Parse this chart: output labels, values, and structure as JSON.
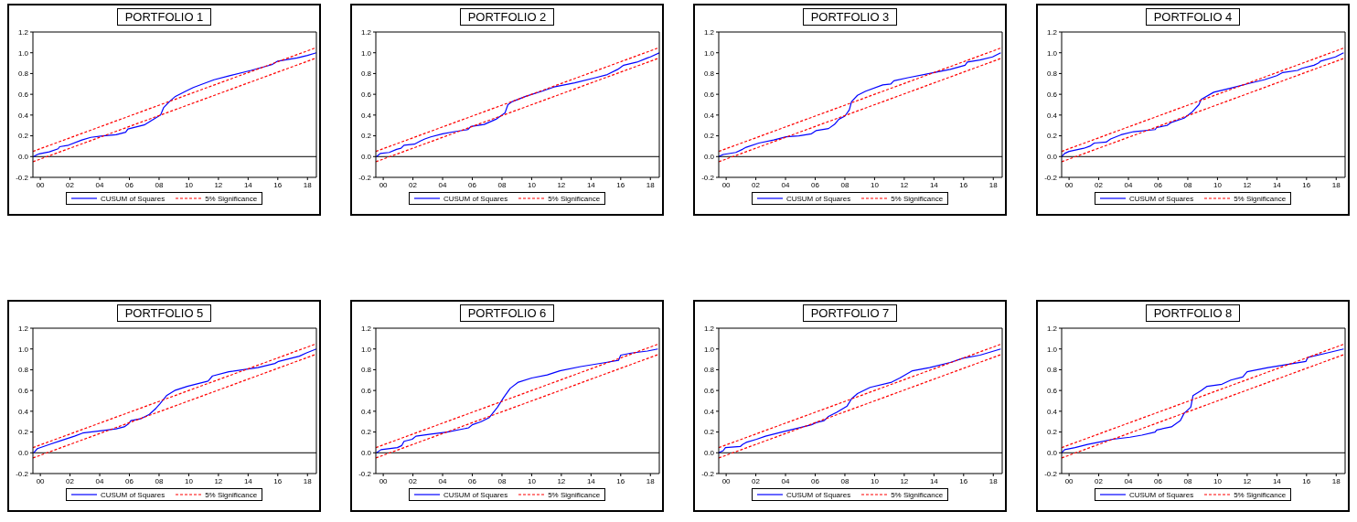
{
  "chart_data": [
    {
      "type": "line",
      "title": "PORTFOLIO 1",
      "xlim": [
        1999.5,
        2018.6
      ],
      "xticks": [
        {
          "value": 2000,
          "label": "00"
        },
        {
          "value": 2002,
          "label": "02"
        },
        {
          "value": 2004,
          "label": "04"
        },
        {
          "value": 2006,
          "label": "06"
        },
        {
          "value": 2008,
          "label": "08"
        },
        {
          "value": 2010,
          "label": "10"
        },
        {
          "value": 2012,
          "label": "12"
        },
        {
          "value": 2014,
          "label": "14"
        },
        {
          "value": 2016,
          "label": "16"
        },
        {
          "value": 2018,
          "label": "18"
        }
      ],
      "ylim": [
        -0.2,
        1.2
      ],
      "yticks": [
        {
          "value": -0.2,
          "label": "-0.2"
        },
        {
          "value": 0,
          "label": "0.0"
        },
        {
          "value": 0.2,
          "label": "0.2"
        },
        {
          "value": 0.4,
          "label": "0.4"
        },
        {
          "value": 0.6,
          "label": "0.6"
        },
        {
          "value": 0.8,
          "label": "0.8"
        },
        {
          "value": 1,
          "label": "1.0"
        },
        {
          "value": 1.2,
          "label": "1.2"
        }
      ],
      "legend": "bottom",
      "ref_lines": [
        {
          "axis": "y",
          "value": 0,
          "color": "#000000"
        }
      ],
      "series": [
        {
          "name": "CUSUM of Squares",
          "color": "#0000ff",
          "line_style": "solid",
          "x": [
            1999.55,
            1999.8,
            1999.9,
            2000.6,
            2001.2,
            2001.3,
            2001.9,
            2002.8,
            2003.4,
            2004.2,
            2005.1,
            2005.75,
            2005.9,
            2007.0,
            2007.4,
            2008.1,
            2008.3,
            2008.7,
            2009.1,
            2009.8,
            2010.3,
            2011.7,
            2012.8,
            2014.2,
            2015.6,
            2016.0,
            2017.3,
            2018.0,
            2018.6
          ],
          "values": [
            0.0,
            0.02,
            0.025,
            0.045,
            0.075,
            0.095,
            0.11,
            0.16,
            0.185,
            0.2,
            0.21,
            0.235,
            0.265,
            0.305,
            0.34,
            0.4,
            0.47,
            0.53,
            0.58,
            0.63,
            0.665,
            0.74,
            0.78,
            0.83,
            0.885,
            0.92,
            0.95,
            0.975,
            1.0
          ]
        },
        {
          "name": "5% Significance",
          "color": "#ff0000",
          "line_style": "dashed",
          "x": [
            1999.5,
            2018.6
          ],
          "values": [
            0.05,
            1.05
          ]
        },
        {
          "color": "#ff0000",
          "line_style": "dashed",
          "x": [
            1999.5,
            2018.6
          ],
          "values": [
            -0.05,
            0.95
          ]
        }
      ]
    },
    {
      "type": "line",
      "title": "PORTFOLIO 2",
      "xlim": [
        1999.5,
        2018.6
      ],
      "xticks": [
        {
          "value": 2000,
          "label": "00"
        },
        {
          "value": 2002,
          "label": "02"
        },
        {
          "value": 2004,
          "label": "04"
        },
        {
          "value": 2006,
          "label": "06"
        },
        {
          "value": 2008,
          "label": "08"
        },
        {
          "value": 2010,
          "label": "10"
        },
        {
          "value": 2012,
          "label": "12"
        },
        {
          "value": 2014,
          "label": "14"
        },
        {
          "value": 2016,
          "label": "16"
        },
        {
          "value": 2018,
          "label": "18"
        }
      ],
      "ylim": [
        -0.2,
        1.2
      ],
      "yticks": [
        {
          "value": -0.2,
          "label": "-0.2"
        },
        {
          "value": 0,
          "label": "0.0"
        },
        {
          "value": 0.2,
          "label": "0.2"
        },
        {
          "value": 0.4,
          "label": "0.4"
        },
        {
          "value": 0.6,
          "label": "0.6"
        },
        {
          "value": 0.8,
          "label": "0.8"
        },
        {
          "value": 1,
          "label": "1.0"
        },
        {
          "value": 1.2,
          "label": "1.2"
        }
      ],
      "legend": "bottom",
      "ref_lines": [
        {
          "axis": "y",
          "value": 0,
          "color": "#000000"
        }
      ],
      "series": [
        {
          "name": "CUSUM of Squares",
          "color": "#0000ff",
          "line_style": "solid",
          "x": [
            1999.55,
            1999.8,
            2000.4,
            2000.9,
            2001.2,
            2001.4,
            2002.1,
            2002.5,
            2002.8,
            2003.2,
            2004.0,
            2004.8,
            2005.7,
            2005.9,
            2006.8,
            2007.6,
            2008.2,
            2008.4,
            2008.7,
            2009.6,
            2010.7,
            2011.5,
            2012.9,
            2014.3,
            2015.1,
            2015.8,
            2016.2,
            2017.1,
            2017.8,
            2018.0,
            2018.6
          ],
          "values": [
            0.0,
            0.03,
            0.04,
            0.07,
            0.08,
            0.11,
            0.12,
            0.15,
            0.17,
            0.19,
            0.22,
            0.24,
            0.26,
            0.29,
            0.31,
            0.36,
            0.42,
            0.5,
            0.53,
            0.58,
            0.63,
            0.67,
            0.71,
            0.76,
            0.79,
            0.84,
            0.88,
            0.91,
            0.95,
            0.96,
            1.0
          ]
        },
        {
          "name": "5% Significance",
          "color": "#ff0000",
          "line_style": "dashed",
          "x": [
            1999.5,
            2018.6
          ],
          "values": [
            0.05,
            1.05
          ]
        },
        {
          "color": "#ff0000",
          "line_style": "dashed",
          "x": [
            1999.5,
            2018.6
          ],
          "values": [
            -0.05,
            0.95
          ]
        }
      ]
    },
    {
      "type": "line",
      "title": "PORTFOLIO 3",
      "xlim": [
        1999.5,
        2018.6
      ],
      "xticks": [
        {
          "value": 2000,
          "label": "00"
        },
        {
          "value": 2002,
          "label": "02"
        },
        {
          "value": 2004,
          "label": "04"
        },
        {
          "value": 2006,
          "label": "06"
        },
        {
          "value": 2008,
          "label": "08"
        },
        {
          "value": 2010,
          "label": "10"
        },
        {
          "value": 2012,
          "label": "12"
        },
        {
          "value": 2014,
          "label": "14"
        },
        {
          "value": 2016,
          "label": "16"
        },
        {
          "value": 2018,
          "label": "18"
        }
      ],
      "ylim": [
        -0.2,
        1.2
      ],
      "yticks": [
        {
          "value": -0.2,
          "label": "-0.2"
        },
        {
          "value": 0,
          "label": "0.0"
        },
        {
          "value": 0.2,
          "label": "0.2"
        },
        {
          "value": 0.4,
          "label": "0.4"
        },
        {
          "value": 0.6,
          "label": "0.6"
        },
        {
          "value": 0.8,
          "label": "0.8"
        },
        {
          "value": 1,
          "label": "1.0"
        },
        {
          "value": 1.2,
          "label": "1.2"
        }
      ],
      "legend": "bottom",
      "ref_lines": [
        {
          "axis": "y",
          "value": 0,
          "color": "#000000"
        }
      ],
      "series": [
        {
          "name": "CUSUM of Squares",
          "color": "#0000ff",
          "line_style": "solid",
          "x": [
            1999.5,
            1999.8,
            2000.65,
            2001.1,
            2001.35,
            2002.2,
            2003.2,
            2004.05,
            2004.9,
            2005.75,
            2006.05,
            2006.9,
            2007.3,
            2007.6,
            2008.0,
            2008.3,
            2008.45,
            2008.85,
            2009.4,
            2010.55,
            2011.1,
            2011.3,
            2012.25,
            2013.7,
            2015.1,
            2016.1,
            2016.25,
            2017.1,
            2017.95,
            2018.5
          ],
          "values": [
            0.0,
            0.02,
            0.04,
            0.07,
            0.09,
            0.13,
            0.16,
            0.19,
            0.2,
            0.22,
            0.25,
            0.27,
            0.31,
            0.36,
            0.39,
            0.45,
            0.53,
            0.59,
            0.63,
            0.69,
            0.7,
            0.73,
            0.76,
            0.8,
            0.84,
            0.88,
            0.91,
            0.93,
            0.96,
            1.0
          ]
        },
        {
          "name": "5% Significance",
          "color": "#ff0000",
          "line_style": "dashed",
          "x": [
            1999.5,
            2018.6
          ],
          "values": [
            0.05,
            1.05
          ]
        },
        {
          "color": "#ff0000",
          "line_style": "dashed",
          "x": [
            1999.5,
            2018.6
          ],
          "values": [
            -0.05,
            0.95
          ]
        }
      ]
    },
    {
      "type": "line",
      "title": "PORTFOLIO 4",
      "xlim": [
        1999.5,
        2018.6
      ],
      "xticks": [
        {
          "value": 2000,
          "label": "00"
        },
        {
          "value": 2002,
          "label": "02"
        },
        {
          "value": 2004,
          "label": "04"
        },
        {
          "value": 2006,
          "label": "06"
        },
        {
          "value": 2008,
          "label": "08"
        },
        {
          "value": 2010,
          "label": "10"
        },
        {
          "value": 2012,
          "label": "12"
        },
        {
          "value": 2014,
          "label": "14"
        },
        {
          "value": 2016,
          "label": "16"
        },
        {
          "value": 2018,
          "label": "18"
        }
      ],
      "ylim": [
        -0.2,
        1.2
      ],
      "yticks": [
        {
          "value": -0.2,
          "label": "-0.2"
        },
        {
          "value": 0,
          "label": "0.0"
        },
        {
          "value": 0.2,
          "label": "0.2"
        },
        {
          "value": 0.4,
          "label": "0.4"
        },
        {
          "value": 0.6,
          "label": "0.6"
        },
        {
          "value": 0.8,
          "label": "0.8"
        },
        {
          "value": 1,
          "label": "1.0"
        },
        {
          "value": 1.2,
          "label": "1.2"
        }
      ],
      "legend": "bottom",
      "ref_lines": [
        {
          "axis": "y",
          "value": 0,
          "color": "#000000"
        }
      ],
      "series": [
        {
          "name": "CUSUM of Squares",
          "color": "#0000ff",
          "line_style": "solid",
          "x": [
            1999.5,
            1999.7,
            2000.0,
            2001.0,
            2001.4,
            2001.7,
            2002.5,
            2002.8,
            2003.5,
            2004.35,
            2005.8,
            2005.9,
            2006.6,
            2006.9,
            2007.75,
            2008.3,
            2008.75,
            2008.9,
            2009.75,
            2010.9,
            2012.0,
            2013.15,
            2014.0,
            2014.4,
            2015.4,
            2015.7,
            2016.5,
            2016.8,
            2016.95,
            2017.95,
            2018.5
          ],
          "values": [
            0.0,
            0.03,
            0.05,
            0.08,
            0.1,
            0.13,
            0.14,
            0.17,
            0.21,
            0.24,
            0.26,
            0.28,
            0.3,
            0.33,
            0.37,
            0.43,
            0.5,
            0.55,
            0.62,
            0.66,
            0.7,
            0.74,
            0.78,
            0.81,
            0.83,
            0.85,
            0.88,
            0.9,
            0.92,
            0.96,
            1.0
          ]
        },
        {
          "name": "5% Significance",
          "color": "#ff0000",
          "line_style": "dashed",
          "x": [
            1999.5,
            2018.6
          ],
          "values": [
            0.05,
            1.05
          ]
        },
        {
          "color": "#ff0000",
          "line_style": "dashed",
          "x": [
            1999.5,
            2018.6
          ],
          "values": [
            -0.05,
            0.95
          ]
        }
      ]
    },
    {
      "type": "line",
      "title": "PORTFOLIO 5",
      "xlim": [
        1999.5,
        2018.6
      ],
      "xticks": [
        {
          "value": 2000,
          "label": "00"
        },
        {
          "value": 2002,
          "label": "02"
        },
        {
          "value": 2004,
          "label": "04"
        },
        {
          "value": 2006,
          "label": "06"
        },
        {
          "value": 2008,
          "label": "08"
        },
        {
          "value": 2010,
          "label": "10"
        },
        {
          "value": 2012,
          "label": "12"
        },
        {
          "value": 2014,
          "label": "14"
        },
        {
          "value": 2016,
          "label": "16"
        },
        {
          "value": 2018,
          "label": "18"
        }
      ],
      "ylim": [
        -0.2,
        1.2
      ],
      "yticks": [
        {
          "value": -0.2,
          "label": "-0.2"
        },
        {
          "value": 0,
          "label": "0.0"
        },
        {
          "value": 0.2,
          "label": "0.2"
        },
        {
          "value": 0.4,
          "label": "0.4"
        },
        {
          "value": 0.6,
          "label": "0.6"
        },
        {
          "value": 0.8,
          "label": "0.8"
        },
        {
          "value": 1,
          "label": "1.0"
        },
        {
          "value": 1.2,
          "label": "1.2"
        }
      ],
      "legend": "bottom",
      "ref_lines": [
        {
          "axis": "y",
          "value": 0,
          "color": "#000000"
        }
      ],
      "series": [
        {
          "name": "CUSUM of Squares",
          "color": "#0000ff",
          "line_style": "solid",
          "x": [
            1999.55,
            1999.8,
            2000.2,
            2000.6,
            2001.45,
            2002.3,
            2002.85,
            2004.0,
            2005.1,
            2005.65,
            2005.95,
            2006.1,
            2006.8,
            2007.35,
            2007.8,
            2008.05,
            2008.5,
            2009.05,
            2009.9,
            2011.3,
            2011.6,
            2012.7,
            2014.65,
            2015.8,
            2016.05,
            2017.45,
            2017.9,
            2018.6
          ],
          "values": [
            0.0,
            0.04,
            0.06,
            0.08,
            0.12,
            0.16,
            0.19,
            0.21,
            0.23,
            0.25,
            0.28,
            0.31,
            0.33,
            0.37,
            0.43,
            0.47,
            0.55,
            0.6,
            0.64,
            0.69,
            0.74,
            0.78,
            0.82,
            0.86,
            0.88,
            0.93,
            0.96,
            1.0
          ]
        },
        {
          "name": "5% Significance",
          "color": "#ff0000",
          "line_style": "dashed",
          "x": [
            1999.5,
            2018.6
          ],
          "values": [
            0.05,
            1.05
          ]
        },
        {
          "color": "#ff0000",
          "line_style": "dashed",
          "x": [
            1999.5,
            2018.6
          ],
          "values": [
            -0.05,
            0.95
          ]
        }
      ]
    },
    {
      "type": "line",
      "title": "PORTFOLIO 6",
      "xlim": [
        1999.5,
        2018.6
      ],
      "xticks": [
        {
          "value": 2000,
          "label": "00"
        },
        {
          "value": 2002,
          "label": "02"
        },
        {
          "value": 2004,
          "label": "04"
        },
        {
          "value": 2006,
          "label": "06"
        },
        {
          "value": 2008,
          "label": "08"
        },
        {
          "value": 2010,
          "label": "10"
        },
        {
          "value": 2012,
          "label": "12"
        },
        {
          "value": 2014,
          "label": "14"
        },
        {
          "value": 2016,
          "label": "16"
        },
        {
          "value": 2018,
          "label": "18"
        }
      ],
      "ylim": [
        -0.2,
        1.2
      ],
      "yticks": [
        {
          "value": -0.2,
          "label": "-0.2"
        },
        {
          "value": 0,
          "label": "0.0"
        },
        {
          "value": 0.2,
          "label": "0.2"
        },
        {
          "value": 0.4,
          "label": "0.4"
        },
        {
          "value": 0.6,
          "label": "0.6"
        },
        {
          "value": 0.8,
          "label": "0.8"
        },
        {
          "value": 1,
          "label": "1.0"
        },
        {
          "value": 1.2,
          "label": "1.2"
        }
      ],
      "legend": "bottom",
      "ref_lines": [
        {
          "axis": "y",
          "value": 0,
          "color": "#000000"
        }
      ],
      "series": [
        {
          "name": "CUSUM of Squares",
          "color": "#0000ff",
          "line_style": "solid",
          "x": [
            1999.55,
            1999.85,
            2000.95,
            2001.25,
            2001.4,
            2001.95,
            2002.2,
            2003.2,
            2004.3,
            2005.75,
            2006.0,
            2006.6,
            2007.15,
            2007.7,
            2008.1,
            2008.55,
            2009.1,
            2010.0,
            2011.05,
            2011.9,
            2013.3,
            2015.0,
            2015.85,
            2016.0,
            2016.7,
            2017.8,
            2018.5
          ],
          "values": [
            0.0,
            0.03,
            0.05,
            0.07,
            0.11,
            0.13,
            0.16,
            0.18,
            0.2,
            0.24,
            0.27,
            0.3,
            0.34,
            0.44,
            0.53,
            0.62,
            0.68,
            0.72,
            0.75,
            0.79,
            0.83,
            0.87,
            0.89,
            0.94,
            0.96,
            0.98,
            1.0
          ]
        },
        {
          "name": "5% Significance",
          "color": "#ff0000",
          "line_style": "dashed",
          "x": [
            1999.5,
            2018.6
          ],
          "values": [
            0.05,
            1.05
          ]
        },
        {
          "color": "#ff0000",
          "line_style": "dashed",
          "x": [
            1999.5,
            2018.6
          ],
          "values": [
            -0.05,
            0.95
          ]
        }
      ]
    },
    {
      "type": "line",
      "title": "PORTFOLIO 7",
      "xlim": [
        1999.5,
        2018.6
      ],
      "xticks": [
        {
          "value": 2000,
          "label": "00"
        },
        {
          "value": 2002,
          "label": "02"
        },
        {
          "value": 2004,
          "label": "04"
        },
        {
          "value": 2006,
          "label": "06"
        },
        {
          "value": 2008,
          "label": "08"
        },
        {
          "value": 2010,
          "label": "10"
        },
        {
          "value": 2012,
          "label": "12"
        },
        {
          "value": 2014,
          "label": "14"
        },
        {
          "value": 2016,
          "label": "16"
        },
        {
          "value": 2018,
          "label": "18"
        }
      ],
      "ylim": [
        -0.2,
        1.2
      ],
      "yticks": [
        {
          "value": -0.2,
          "label": "-0.2"
        },
        {
          "value": 0,
          "label": "0.0"
        },
        {
          "value": 0.2,
          "label": "0.2"
        },
        {
          "value": 0.4,
          "label": "0.4"
        },
        {
          "value": 0.6,
          "label": "0.6"
        },
        {
          "value": 0.8,
          "label": "0.8"
        },
        {
          "value": 1,
          "label": "1.0"
        },
        {
          "value": 1.2,
          "label": "1.2"
        }
      ],
      "legend": "bottom",
      "ref_lines": [
        {
          "axis": "y",
          "value": 0,
          "color": "#000000"
        }
      ],
      "series": [
        {
          "name": "CUSUM of Squares",
          "color": "#0000ff",
          "line_style": "solid",
          "x": [
            1999.5,
            1999.8,
            1999.95,
            2000.95,
            2001.1,
            2001.35,
            2002.05,
            2002.65,
            2004.05,
            2005.2,
            2005.75,
            2006.05,
            2006.6,
            2006.9,
            2007.45,
            2008.15,
            2008.45,
            2008.85,
            2009.7,
            2011.15,
            2011.7,
            2012.55,
            2013.7,
            2015.1,
            2015.95,
            2017.1,
            2018.5
          ],
          "values": [
            0.0,
            0.02,
            0.05,
            0.06,
            0.08,
            0.1,
            0.13,
            0.16,
            0.21,
            0.25,
            0.27,
            0.29,
            0.31,
            0.35,
            0.39,
            0.45,
            0.52,
            0.57,
            0.63,
            0.68,
            0.72,
            0.79,
            0.82,
            0.87,
            0.91,
            0.94,
            1.0
          ]
        },
        {
          "name": "5% Significance",
          "color": "#ff0000",
          "line_style": "dashed",
          "x": [
            1999.5,
            2018.6
          ],
          "values": [
            0.05,
            1.05
          ]
        },
        {
          "color": "#ff0000",
          "line_style": "dashed",
          "x": [
            1999.5,
            2018.6
          ],
          "values": [
            -0.05,
            0.95
          ]
        }
      ]
    },
    {
      "type": "line",
      "title": "PORTFOLIO 8",
      "xlim": [
        1999.5,
        2018.6
      ],
      "xticks": [
        {
          "value": 2000,
          "label": "00"
        },
        {
          "value": 2002,
          "label": "02"
        },
        {
          "value": 2004,
          "label": "04"
        },
        {
          "value": 2006,
          "label": "06"
        },
        {
          "value": 2008,
          "label": "08"
        },
        {
          "value": 2010,
          "label": "10"
        },
        {
          "value": 2012,
          "label": "12"
        },
        {
          "value": 2014,
          "label": "14"
        },
        {
          "value": 2016,
          "label": "16"
        },
        {
          "value": 2018,
          "label": "18"
        }
      ],
      "ylim": [
        -0.2,
        1.2
      ],
      "yticks": [
        {
          "value": -0.2,
          "label": "-0.2"
        },
        {
          "value": 0,
          "label": "0.0"
        },
        {
          "value": 0.2,
          "label": "0.2"
        },
        {
          "value": 0.4,
          "label": "0.4"
        },
        {
          "value": 0.6,
          "label": "0.6"
        },
        {
          "value": 0.8,
          "label": "0.8"
        },
        {
          "value": 1,
          "label": "1.0"
        },
        {
          "value": 1.2,
          "label": "1.2"
        }
      ],
      "legend": "bottom",
      "ref_lines": [
        {
          "axis": "y",
          "value": 0,
          "color": "#000000"
        }
      ],
      "series": [
        {
          "name": "CUSUM of Squares",
          "color": "#0000ff",
          "line_style": "solid",
          "x": [
            1999.5,
            1999.7,
            2000.4,
            2001.25,
            2001.95,
            2002.95,
            2004.1,
            2004.9,
            2005.8,
            2005.9,
            2006.9,
            2007.5,
            2007.75,
            2008.2,
            2008.35,
            2008.9,
            2009.3,
            2010.3,
            2010.9,
            2011.7,
            2012.0,
            2013.4,
            2015.1,
            2015.95,
            2016.1,
            2017.35,
            2018.5
          ],
          "values": [
            0.0,
            0.03,
            0.05,
            0.08,
            0.1,
            0.13,
            0.15,
            0.17,
            0.2,
            0.22,
            0.25,
            0.31,
            0.38,
            0.44,
            0.55,
            0.6,
            0.64,
            0.66,
            0.7,
            0.73,
            0.78,
            0.82,
            0.86,
            0.88,
            0.92,
            0.96,
            1.0
          ]
        },
        {
          "name": "5% Significance",
          "color": "#ff0000",
          "line_style": "dashed",
          "x": [
            1999.5,
            2018.6
          ],
          "values": [
            0.05,
            1.05
          ]
        },
        {
          "color": "#ff0000",
          "line_style": "dashed",
          "x": [
            1999.5,
            2018.6
          ],
          "values": [
            -0.05,
            0.95
          ]
        }
      ]
    }
  ]
}
